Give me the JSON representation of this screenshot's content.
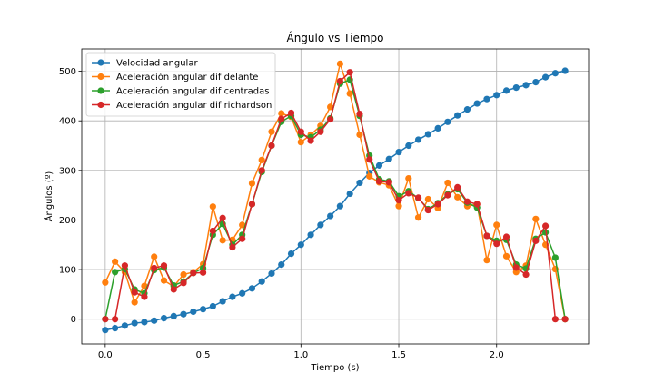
{
  "chart_data": {
    "type": "line",
    "title": "Ángulo vs Tiempo",
    "xlabel": "Tiempo (s)",
    "ylabel": "Ángulos (º)",
    "xlim": [
      -0.12,
      2.47
    ],
    "ylim": [
      -50,
      545
    ],
    "xticks": [
      0.0,
      0.5,
      1.0,
      1.5,
      2.0
    ],
    "xtick_labels": [
      "0.0",
      "0.5",
      "1.0",
      "1.5",
      "2.0"
    ],
    "yticks": [
      0,
      100,
      200,
      300,
      400,
      500
    ],
    "ytick_labels": [
      "0",
      "100",
      "200",
      "300",
      "400",
      "500"
    ],
    "grid": true,
    "legend_position": "top-left",
    "x": [
      0.0,
      0.05,
      0.1,
      0.15,
      0.2,
      0.25,
      0.3,
      0.35,
      0.4,
      0.45,
      0.5,
      0.55,
      0.6,
      0.65,
      0.7,
      0.75,
      0.8,
      0.85,
      0.9,
      0.95,
      1.0,
      1.05,
      1.1,
      1.15,
      1.2,
      1.25,
      1.3,
      1.35,
      1.4,
      1.45,
      1.5,
      1.55,
      1.6,
      1.65,
      1.7,
      1.75,
      1.8,
      1.85,
      1.9,
      1.95,
      2.0,
      2.05,
      2.1,
      2.15,
      2.2,
      2.25,
      2.3,
      2.35
    ],
    "series": [
      {
        "name": "Velocidad angular",
        "color": "#1f77b4",
        "values": [
          -22,
          -18,
          -13,
          -8,
          -6,
          -3,
          2,
          6,
          10,
          15,
          20,
          26,
          36,
          45,
          52,
          62,
          76,
          92,
          110,
          132,
          150,
          170,
          190,
          208,
          228,
          253,
          275,
          295,
          310,
          323,
          337,
          350,
          362,
          373,
          385,
          398,
          411,
          423,
          435,
          444,
          452,
          461,
          467,
          472,
          478,
          488,
          496,
          501
        ]
      },
      {
        "name": "Aceleración angular dif delante",
        "color": "#ff7f0e",
        "values": [
          74,
          116,
          95,
          34,
          67,
          126,
          78,
          66,
          90,
          95,
          111,
          227,
          159,
          160,
          190,
          274,
          321,
          378,
          415,
          408,
          357,
          372,
          390,
          428,
          515,
          455,
          372,
          288,
          276,
          270,
          228,
          284,
          205,
          242,
          224,
          275,
          246,
          228,
          232,
          119,
          190,
          127,
          95,
          108,
          202,
          150,
          101,
          0
        ]
      },
      {
        "name": "Aceleración angular dif centradas",
        "color": "#2ca02c",
        "values": [
          0,
          95,
          101,
          60,
          52,
          99,
          104,
          68,
          76,
          93,
          103,
          170,
          192,
          150,
          170,
          232,
          297,
          350,
          398,
          410,
          372,
          367,
          382,
          405,
          475,
          483,
          410,
          330,
          282,
          278,
          248,
          258,
          244,
          222,
          234,
          252,
          262,
          235,
          225,
          168,
          158,
          160,
          110,
          102,
          162,
          175,
          124,
          0
        ]
      },
      {
        "name": "Aceleración angular dif richardson",
        "color": "#d62728",
        "values": [
          0,
          0,
          108,
          54,
          45,
          103,
          108,
          60,
          73,
          93,
          94,
          178,
          204,
          145,
          162,
          232,
          300,
          350,
          404,
          416,
          378,
          360,
          378,
          403,
          480,
          498,
          414,
          322,
          278,
          276,
          240,
          254,
          245,
          220,
          232,
          250,
          266,
          237,
          232,
          168,
          152,
          166,
          104,
          90,
          158,
          188,
          0,
          0
        ]
      }
    ]
  }
}
